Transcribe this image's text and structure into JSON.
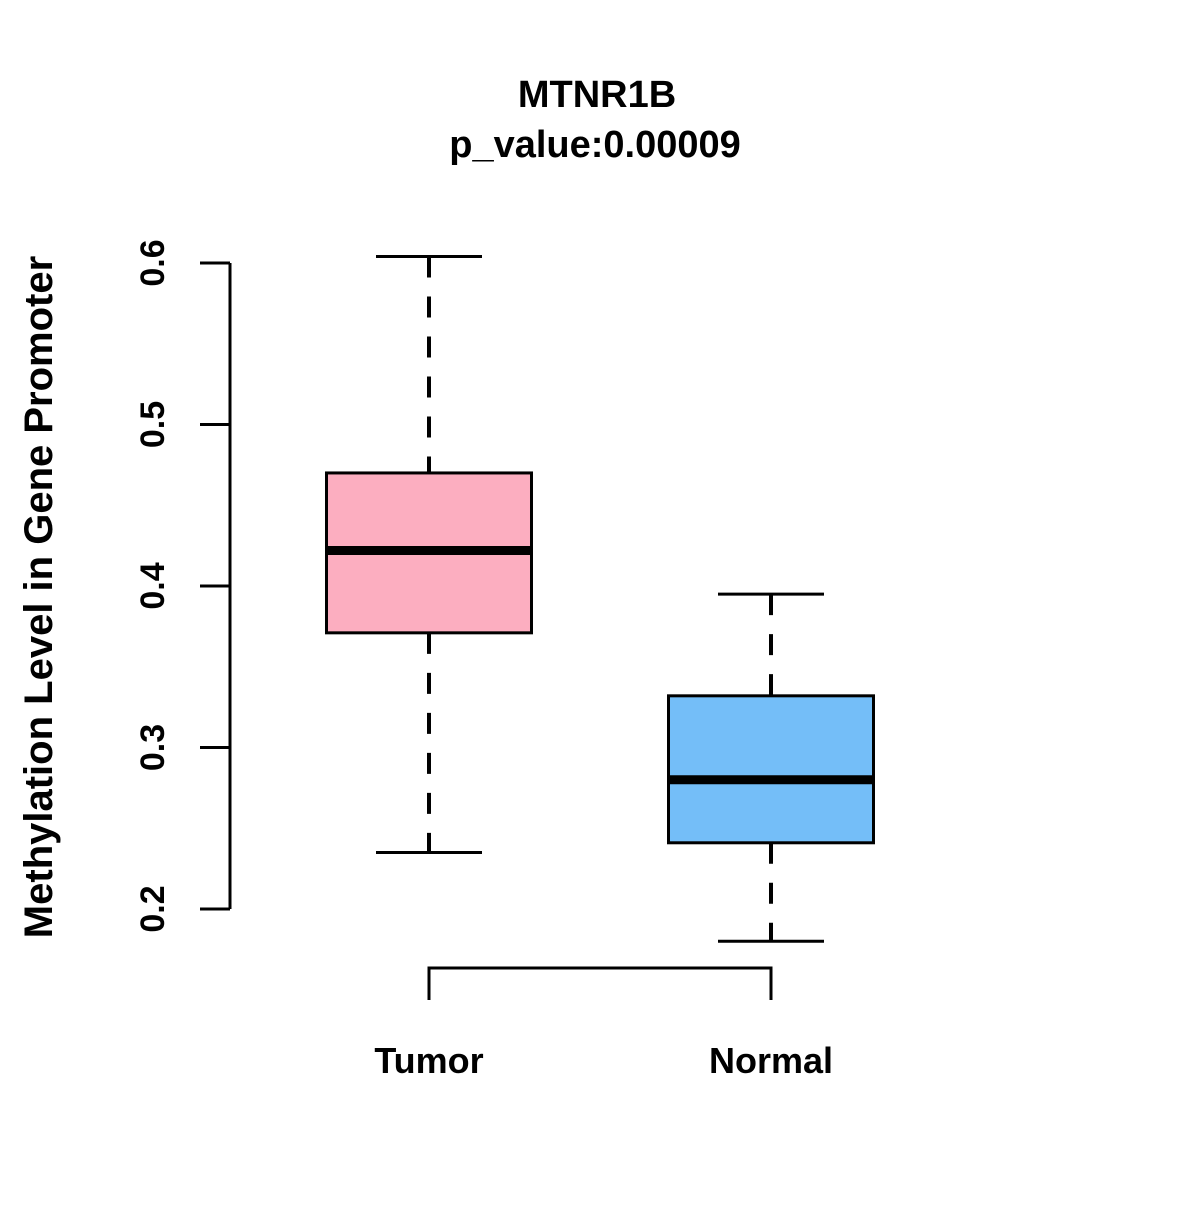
{
  "chart_data": {
    "type": "boxplot",
    "title": "MTNR1B",
    "subtitle": "p_value:0.00009",
    "ylabel": "Methylation Level in Gene Promoter",
    "xlabel": "",
    "categories": [
      "Tumor",
      "Normal"
    ],
    "y_ticks": [
      "0.2",
      "0.3",
      "0.4",
      "0.5",
      "0.6"
    ],
    "ylim": [
      0.2,
      0.6
    ],
    "grid": false,
    "legend": "none",
    "series": [
      {
        "name": "Tumor",
        "box_color": "#FCAEC0",
        "whisker_low": 0.235,
        "q1": 0.371,
        "median": 0.422,
        "q3": 0.47,
        "whisker_high": 0.604
      },
      {
        "name": "Normal",
        "box_color": "#74BEF8",
        "whisker_low": 0.18,
        "q1": 0.241,
        "median": 0.28,
        "q3": 0.332,
        "whisker_high": 0.395
      }
    ],
    "colors": {
      "stroke": "#000000",
      "background": "#FFFFFF",
      "tumor_box": "#FCAEC0",
      "normal_box": "#74BEF8"
    }
  }
}
